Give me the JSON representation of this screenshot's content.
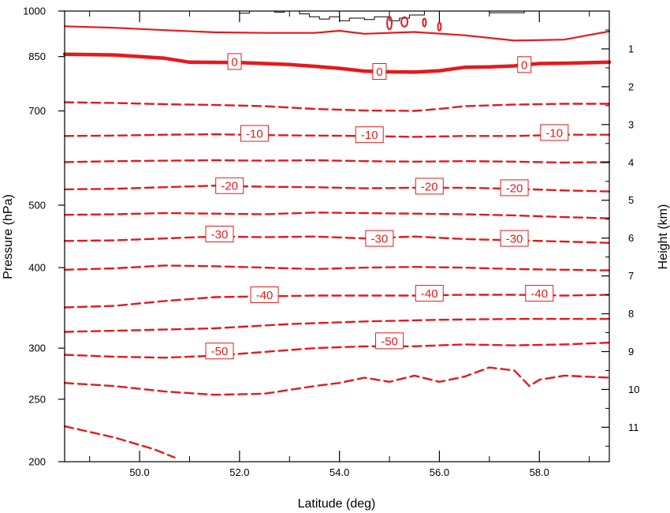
{
  "chart_data": {
    "type": "contour",
    "xlabel": "Latitude (deg)",
    "ylabel_left": "Pressure (hPa)",
    "ylabel_right": "Height (km)",
    "xlim": [
      48.5,
      59.4
    ],
    "x_ticks": [
      50.0,
      52.0,
      54.0,
      56.0,
      58.0
    ],
    "x_tick_labels": [
      "50.0",
      "52.0",
      "54.0",
      "56.0",
      "58.0"
    ],
    "ylim_pressure": [
      1000,
      200
    ],
    "y_scale": "log-pressure",
    "y_left_ticks": [
      200,
      250,
      300,
      400,
      500,
      700,
      850,
      1000
    ],
    "y_left_tick_labels": [
      "200",
      "250",
      "300",
      "400",
      "500",
      "700",
      "850",
      "1000"
    ],
    "y_right_ticks": [
      1,
      2,
      3,
      4,
      5,
      6,
      7,
      8,
      9,
      10,
      11
    ],
    "y_right_tick_labels": [
      "1",
      "2",
      "3",
      "4",
      "5",
      "6",
      "7",
      "8",
      "9",
      "10",
      "11"
    ],
    "line_color": "#e41a1c",
    "contours": [
      {
        "value": -60,
        "style": "dashed",
        "points": [
          [
            48.5,
            227
          ],
          [
            49.5,
            218
          ],
          [
            50.3,
            209
          ],
          [
            50.7,
            203
          ]
        ]
      },
      {
        "value": -55,
        "style": "dashed",
        "points": [
          [
            48.5,
            265
          ],
          [
            49.5,
            262
          ],
          [
            50.5,
            257
          ],
          [
            51.5,
            254
          ],
          [
            52.5,
            255
          ],
          [
            53.5,
            262
          ],
          [
            54.0,
            265
          ],
          [
            54.5,
            270
          ],
          [
            55.0,
            266
          ],
          [
            55.5,
            272
          ],
          [
            56.0,
            266
          ],
          [
            56.5,
            271
          ],
          [
            57.0,
            280
          ],
          [
            57.5,
            277
          ],
          [
            57.8,
            262
          ],
          [
            58.0,
            268
          ],
          [
            58.5,
            272
          ],
          [
            59.4,
            270
          ]
        ]
      },
      {
        "value": -50,
        "style": "dashed",
        "points": [
          [
            48.5,
            293
          ],
          [
            49.5,
            291
          ],
          [
            50.5,
            290
          ],
          [
            51.5,
            292
          ],
          [
            52.5,
            296
          ],
          [
            53.5,
            300
          ],
          [
            54.5,
            302
          ],
          [
            55.5,
            302
          ],
          [
            56.5,
            304
          ],
          [
            57.5,
            303
          ],
          [
            58.5,
            304
          ],
          [
            59.4,
            306
          ]
        ]
      },
      {
        "value": -45,
        "style": "dashed",
        "points": [
          [
            48.5,
            318
          ],
          [
            50.0,
            320
          ],
          [
            51.5,
            322
          ],
          [
            53.0,
            327
          ],
          [
            54.5,
            330
          ],
          [
            56.0,
            332
          ],
          [
            57.5,
            333
          ],
          [
            59.4,
            333
          ]
        ]
      },
      {
        "value": -40,
        "style": "dashed",
        "points": [
          [
            48.5,
            347
          ],
          [
            49.5,
            349
          ],
          [
            50.5,
            355
          ],
          [
            51.5,
            360
          ],
          [
            52.5,
            361
          ],
          [
            53.5,
            362
          ],
          [
            54.5,
            362
          ],
          [
            55.5,
            362
          ],
          [
            56.5,
            363
          ],
          [
            57.5,
            363
          ],
          [
            58.5,
            362
          ],
          [
            59.4,
            363
          ]
        ]
      },
      {
        "value": -35,
        "style": "dashed",
        "points": [
          [
            48.5,
            397
          ],
          [
            49.5,
            399
          ],
          [
            50.5,
            403
          ],
          [
            51.5,
            402
          ],
          [
            52.5,
            400
          ],
          [
            53.5,
            398
          ],
          [
            54.5,
            400
          ],
          [
            55.5,
            401
          ],
          [
            56.5,
            400
          ],
          [
            57.5,
            398
          ],
          [
            58.5,
            397
          ],
          [
            59.4,
            396
          ]
        ]
      },
      {
        "value": -30,
        "style": "dashed",
        "points": [
          [
            48.5,
            440
          ],
          [
            49.5,
            441
          ],
          [
            50.5,
            444
          ],
          [
            51.5,
            447
          ],
          [
            52.5,
            446
          ],
          [
            53.5,
            447
          ],
          [
            54.5,
            444
          ],
          [
            55.5,
            447
          ],
          [
            56.5,
            443
          ],
          [
            57.5,
            441
          ],
          [
            58.5,
            439
          ],
          [
            59.4,
            437
          ]
        ]
      },
      {
        "value": -25,
        "style": "dashed",
        "points": [
          [
            48.5,
            483
          ],
          [
            49.5,
            484
          ],
          [
            50.5,
            486
          ],
          [
            51.5,
            485
          ],
          [
            52.5,
            484
          ],
          [
            53.5,
            487
          ],
          [
            54.5,
            486
          ],
          [
            55.5,
            485
          ],
          [
            56.5,
            484
          ],
          [
            57.5,
            482
          ],
          [
            58.5,
            479
          ],
          [
            59.4,
            477
          ]
        ]
      },
      {
        "value": -20,
        "style": "dashed",
        "points": [
          [
            48.5,
            529
          ],
          [
            49.5,
            530
          ],
          [
            50.5,
            533
          ],
          [
            51.5,
            536
          ],
          [
            52.5,
            534
          ],
          [
            53.5,
            533
          ],
          [
            54.5,
            531
          ],
          [
            55.5,
            532
          ],
          [
            56.5,
            532
          ],
          [
            57.5,
            530
          ],
          [
            58.5,
            527
          ],
          [
            59.4,
            525
          ]
        ]
      },
      {
        "value": -15,
        "style": "dashed",
        "points": [
          [
            48.5,
            583
          ],
          [
            49.5,
            585
          ],
          [
            50.5,
            586
          ],
          [
            51.5,
            587
          ],
          [
            52.5,
            586
          ],
          [
            53.5,
            587
          ],
          [
            54.5,
            585
          ],
          [
            55.5,
            584
          ],
          [
            56.5,
            585
          ],
          [
            57.5,
            584
          ],
          [
            58.5,
            582
          ],
          [
            59.4,
            583
          ]
        ]
      },
      {
        "value": -10,
        "style": "dashed",
        "points": [
          [
            48.5,
            640
          ],
          [
            49.5,
            641
          ],
          [
            50.5,
            643
          ],
          [
            51.5,
            644
          ],
          [
            52.5,
            642
          ],
          [
            53.5,
            641
          ],
          [
            54.5,
            640
          ],
          [
            55.5,
            638
          ],
          [
            56.5,
            640
          ],
          [
            57.5,
            640
          ],
          [
            58.5,
            643
          ],
          [
            59.4,
            643
          ]
        ]
      },
      {
        "value": -5,
        "style": "dashed",
        "points": [
          [
            48.5,
            722
          ],
          [
            49.5,
            720
          ],
          [
            50.5,
            717
          ],
          [
            51.5,
            715
          ],
          [
            52.5,
            712
          ],
          [
            53.5,
            705
          ],
          [
            54.5,
            701
          ],
          [
            55.5,
            700
          ],
          [
            56.0,
            705
          ],
          [
            56.5,
            712
          ],
          [
            57.5,
            716
          ],
          [
            58.5,
            718
          ],
          [
            59.4,
            718
          ]
        ]
      },
      {
        "value": 0,
        "style": "thick",
        "points": [
          [
            48.5,
            857
          ],
          [
            49.5,
            855
          ],
          [
            50.5,
            845
          ],
          [
            51.0,
            833
          ],
          [
            52.0,
            832
          ],
          [
            53.0,
            826
          ],
          [
            53.5,
            821
          ],
          [
            54.0,
            815
          ],
          [
            54.5,
            807
          ],
          [
            55.0,
            805
          ],
          [
            55.5,
            804
          ],
          [
            56.0,
            808
          ],
          [
            56.5,
            818
          ],
          [
            57.0,
            819
          ],
          [
            57.5,
            822
          ],
          [
            58.0,
            829
          ],
          [
            58.5,
            830
          ],
          [
            59.4,
            833
          ]
        ]
      },
      {
        "value": 5,
        "style": "solid",
        "points": [
          [
            48.5,
            947
          ],
          [
            49.5,
            942
          ],
          [
            50.5,
            934
          ],
          [
            51.5,
            927
          ],
          [
            52.5,
            925
          ],
          [
            53.5,
            925
          ],
          [
            54.0,
            932
          ],
          [
            54.5,
            922
          ],
          [
            55.5,
            928
          ],
          [
            56.5,
            917
          ],
          [
            57.5,
            900
          ],
          [
            58.5,
            903
          ],
          [
            59.4,
            930
          ]
        ]
      }
    ],
    "contour_labels": [
      {
        "text": "-50",
        "x": 51.6,
        "p": 297
      },
      {
        "text": "-50",
        "x": 55.0,
        "p": 308
      },
      {
        "text": "-40",
        "x": 52.5,
        "p": 363
      },
      {
        "text": "-40",
        "x": 55.8,
        "p": 365
      },
      {
        "text": "-40",
        "x": 58.0,
        "p": 365
      },
      {
        "text": "-30",
        "x": 51.6,
        "p": 451
      },
      {
        "text": "-30",
        "x": 54.8,
        "p": 444
      },
      {
        "text": "-30",
        "x": 57.5,
        "p": 444
      },
      {
        "text": "-20",
        "x": 51.8,
        "p": 536
      },
      {
        "text": "-20",
        "x": 55.8,
        "p": 535
      },
      {
        "text": "-20",
        "x": 57.5,
        "p": 532
      },
      {
        "text": "-10",
        "x": 52.3,
        "p": 646
      },
      {
        "text": "-10",
        "x": 54.6,
        "p": 643
      },
      {
        "text": "-10",
        "x": 58.3,
        "p": 648
      },
      {
        "text": "0",
        "x": 51.9,
        "p": 835
      },
      {
        "text": "0",
        "x": 54.8,
        "p": 806
      },
      {
        "text": "0",
        "x": 57.7,
        "p": 826
      }
    ],
    "terrain": [
      [
        52.0,
        1000
      ],
      [
        52.0,
        992
      ],
      [
        52.2,
        992
      ],
      [
        52.2,
        1000
      ],
      [
        52.7,
        1000
      ],
      [
        52.7,
        996
      ],
      [
        52.9,
        996
      ],
      [
        52.9,
        1000
      ],
      [
        53.2,
        1000
      ],
      [
        53.2,
        990
      ],
      [
        53.4,
        990
      ],
      [
        53.4,
        980
      ],
      [
        53.6,
        980
      ],
      [
        53.6,
        972
      ],
      [
        53.8,
        972
      ],
      [
        53.8,
        980
      ],
      [
        54.0,
        980
      ],
      [
        54.0,
        966
      ],
      [
        54.2,
        966
      ],
      [
        54.2,
        975
      ],
      [
        54.5,
        975
      ],
      [
        54.5,
        970
      ],
      [
        54.7,
        970
      ],
      [
        54.7,
        980
      ],
      [
        55.0,
        980
      ],
      [
        55.0,
        966
      ],
      [
        55.2,
        966
      ],
      [
        55.2,
        975
      ],
      [
        55.4,
        975
      ],
      [
        55.4,
        986
      ],
      [
        55.7,
        986
      ],
      [
        55.7,
        1000
      ],
      [
        57.0,
        1000
      ],
      [
        57.0,
        994
      ],
      [
        57.7,
        994
      ],
      [
        57.7,
        1000
      ]
    ]
  }
}
